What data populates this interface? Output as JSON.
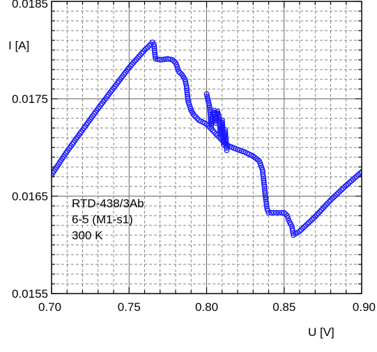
{
  "chart_data": {
    "type": "scatter",
    "title": "",
    "xlabel": "U [V]",
    "ylabel": "I [A]",
    "xlim": [
      0.7,
      0.9
    ],
    "ylim": [
      0.0155,
      0.0185
    ],
    "x_ticks": [
      "0.70",
      "0.75",
      "0.80",
      "0.85",
      "0.90"
    ],
    "y_ticks": [
      "0.0155",
      "0.0165",
      "0.0175",
      "0.0185"
    ],
    "grid": "major and minor, dashed",
    "legend": "none",
    "annotations": [
      "RTD-438/3Ab",
      "6-5 (M1-s1)",
      "300 K"
    ],
    "marker": "open circle",
    "colors": {
      "series": "#1a1aff",
      "grid": "#555555",
      "frame": "#000000"
    },
    "series": [
      {
        "name": "",
        "x": [
          0.7,
          0.71,
          0.72,
          0.73,
          0.74,
          0.75,
          0.76,
          0.764,
          0.765,
          0.766,
          0.767,
          0.77,
          0.775,
          0.778,
          0.78,
          0.781,
          0.782,
          0.784,
          0.786,
          0.787,
          0.788,
          0.79,
          0.792,
          0.795,
          0.8,
          0.803,
          0.806,
          0.809,
          0.812,
          0.815,
          0.82,
          0.825,
          0.83,
          0.834,
          0.836,
          0.837,
          0.838,
          0.839,
          0.84,
          0.845,
          0.85,
          0.852,
          0.853,
          0.855,
          0.856,
          0.86,
          0.87,
          0.88,
          0.89,
          0.9
        ],
        "y": [
          0.01672,
          0.01696,
          0.01718,
          0.0174,
          0.01761,
          0.01782,
          0.018,
          0.01806,
          0.01808,
          0.01806,
          0.01791,
          0.0179,
          0.01791,
          0.0179,
          0.01787,
          0.01783,
          0.01778,
          0.01775,
          0.0177,
          0.01763,
          0.01748,
          0.01738,
          0.01733,
          0.01728,
          0.01724,
          0.01719,
          0.01714,
          0.01709,
          0.01704,
          0.01701,
          0.01698,
          0.01695,
          0.01691,
          0.01686,
          0.01677,
          0.01664,
          0.01649,
          0.01637,
          0.01633,
          0.01633,
          0.01633,
          0.0163,
          0.01625,
          0.01619,
          0.0161,
          0.01614,
          0.01629,
          0.01646,
          0.01661,
          0.01675
        ]
      },
      {
        "name": "",
        "x": [
          0.8,
          0.801,
          0.802,
          0.803,
          0.804,
          0.805,
          0.806,
          0.807,
          0.808,
          0.809,
          0.81,
          0.811,
          0.812,
          0.813
        ],
        "y": [
          0.01755,
          0.01748,
          0.01741,
          0.01722,
          0.01734,
          0.01738,
          0.01725,
          0.01737,
          0.01731,
          0.01712,
          0.01728,
          0.01703,
          0.01718,
          0.01697
        ]
      }
    ]
  }
}
